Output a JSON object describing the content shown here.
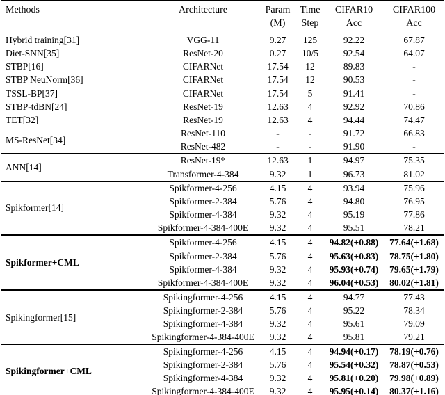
{
  "colors": {
    "background": "#ffffff",
    "text": "#000000",
    "rule": "#000000"
  },
  "header": {
    "methods": "Methods",
    "architecture": "Architecture",
    "param": [
      "Param",
      "(M)"
    ],
    "time": [
      "Time",
      "Step"
    ],
    "cifar10": [
      "CIFAR10",
      "Acc"
    ],
    "cifar100": [
      "CIFAR100",
      "Acc"
    ]
  },
  "sections": [
    {
      "rule_top": "none",
      "bold": false,
      "blocks": [
        {
          "method": "Hybrid training[31]",
          "rows": [
            {
              "arch": "VGG-11",
              "param": "9.27",
              "time": "125",
              "c10": "92.22",
              "c100": "67.87"
            }
          ]
        },
        {
          "method": "Diet-SNN[35]",
          "rows": [
            {
              "arch": "ResNet-20",
              "param": "0.27",
              "time": "10/5",
              "c10": "92.54",
              "c100": "64.07"
            }
          ]
        },
        {
          "method": "STBP[16]",
          "rows": [
            {
              "arch": "CIFARNet",
              "param": "17.54",
              "time": "12",
              "c10": "89.83",
              "c100": "-"
            }
          ]
        },
        {
          "method": "STBP NeuNorm[36]",
          "rows": [
            {
              "arch": "CIFARNet",
              "param": "17.54",
              "time": "12",
              "c10": "90.53",
              "c100": "-"
            }
          ]
        },
        {
          "method": "TSSL-BP[37]",
          "rows": [
            {
              "arch": "CIFARNet",
              "param": "17.54",
              "time": "5",
              "c10": "91.41",
              "c100": "-"
            }
          ]
        },
        {
          "method": "STBP-tdBN[24]",
          "rows": [
            {
              "arch": "ResNet-19",
              "param": "12.63",
              "time": "4",
              "c10": "92.92",
              "c100": "70.86"
            }
          ]
        },
        {
          "method": "TET[32]",
          "rows": [
            {
              "arch": "ResNet-19",
              "param": "12.63",
              "time": "4",
              "c10": "94.44",
              "c100": "74.47"
            }
          ]
        },
        {
          "method": "MS-ResNet[34]",
          "rows": [
            {
              "arch": "ResNet-110",
              "param": "-",
              "time": "-",
              "c10": "91.72",
              "c100": "66.83"
            },
            {
              "arch": "ResNet-482",
              "param": "-",
              "time": "-",
              "c10": "91.90",
              "c100": "-"
            }
          ]
        }
      ]
    },
    {
      "rule_top": "thin",
      "bold": false,
      "blocks": [
        {
          "method": "ANN[14]",
          "rows": [
            {
              "arch": "ResNet-19*",
              "param": "12.63",
              "time": "1",
              "c10": "94.97",
              "c100": "75.35"
            },
            {
              "arch": "Transformer-4-384",
              "param": "9.32",
              "time": "1",
              "c10": "96.73",
              "c100": "81.02"
            }
          ]
        }
      ]
    },
    {
      "rule_top": "thin",
      "bold": false,
      "blocks": [
        {
          "method": "Spikformer[14]",
          "rows": [
            {
              "arch": "Spikformer-4-256",
              "param": "4.15",
              "time": "4",
              "c10": "93.94",
              "c100": "75.96"
            },
            {
              "arch": "Spikformer-2-384",
              "param": "5.76",
              "time": "4",
              "c10": "94.80",
              "c100": "76.95"
            },
            {
              "arch": "Spikformer-4-384",
              "param": "9.32",
              "time": "4",
              "c10": "95.19",
              "c100": "77.86"
            },
            {
              "arch": "Spikformer-4-384-400E",
              "param": "9.32",
              "time": "4",
              "c10": "95.51",
              "c100": "78.21"
            }
          ]
        }
      ]
    },
    {
      "rule_top": "thick",
      "bold": true,
      "blocks": [
        {
          "method": "Spikformer+CML",
          "rows": [
            {
              "arch": "Spikformer-4-256",
              "param": "4.15",
              "time": "4",
              "c10": "94.82(+0.88)",
              "c100": "77.64(+1.68)"
            },
            {
              "arch": "Spikformer-2-384",
              "param": "5.76",
              "time": "4",
              "c10": "95.63(+0.83)",
              "c100": "78.75(+1.80)"
            },
            {
              "arch": "Spikformer-4-384",
              "param": "9.32",
              "time": "4",
              "c10": "95.93(+0.74)",
              "c100": "79.65(+1.79)"
            },
            {
              "arch": "Spikformer-4-384-400E",
              "param": "9.32",
              "time": "4",
              "c10": "96.04(+0.53)",
              "c100": "80.02(+1.81)"
            }
          ]
        }
      ]
    },
    {
      "rule_top": "thick",
      "bold": false,
      "blocks": [
        {
          "method": "Spikingformer[15]",
          "rows": [
            {
              "arch": "Spikingformer-4-256",
              "param": "4.15",
              "time": "4",
              "c10": "94.77",
              "c100": "77.43"
            },
            {
              "arch": "Spikingformer-2-384",
              "param": "5.76",
              "time": "4",
              "c10": "95.22",
              "c100": "78.34"
            },
            {
              "arch": "Spikingformer-4-384",
              "param": "9.32",
              "time": "4",
              "c10": "95.61",
              "c100": "79.09"
            },
            {
              "arch": "Spikingformer-4-384-400E",
              "param": "9.32",
              "time": "4",
              "c10": "95.81",
              "c100": "79.21"
            }
          ]
        }
      ]
    },
    {
      "rule_top": "thin",
      "bold": true,
      "blocks": [
        {
          "method": "Spikingformer+CML",
          "rows": [
            {
              "arch": "Spikingformer-4-256",
              "param": "4.15",
              "time": "4",
              "c10": "94.94(+0.17)",
              "c100": "78.19(+0.76)"
            },
            {
              "arch": "Spikingformer-2-384",
              "param": "5.76",
              "time": "4",
              "c10": "95.54(+0.32)",
              "c100": "78.87(+0.53)"
            },
            {
              "arch": "Spikingformer-4-384",
              "param": "9.32",
              "time": "4",
              "c10": "95.81(+0.20)",
              "c100": "79.98(+0.89)"
            },
            {
              "arch": "Spikingformer-4-384-400E",
              "param": "9.32",
              "time": "4",
              "c10": "95.95(+0.14)",
              "c100": "80.37(+1.16)"
            }
          ]
        }
      ]
    }
  ]
}
